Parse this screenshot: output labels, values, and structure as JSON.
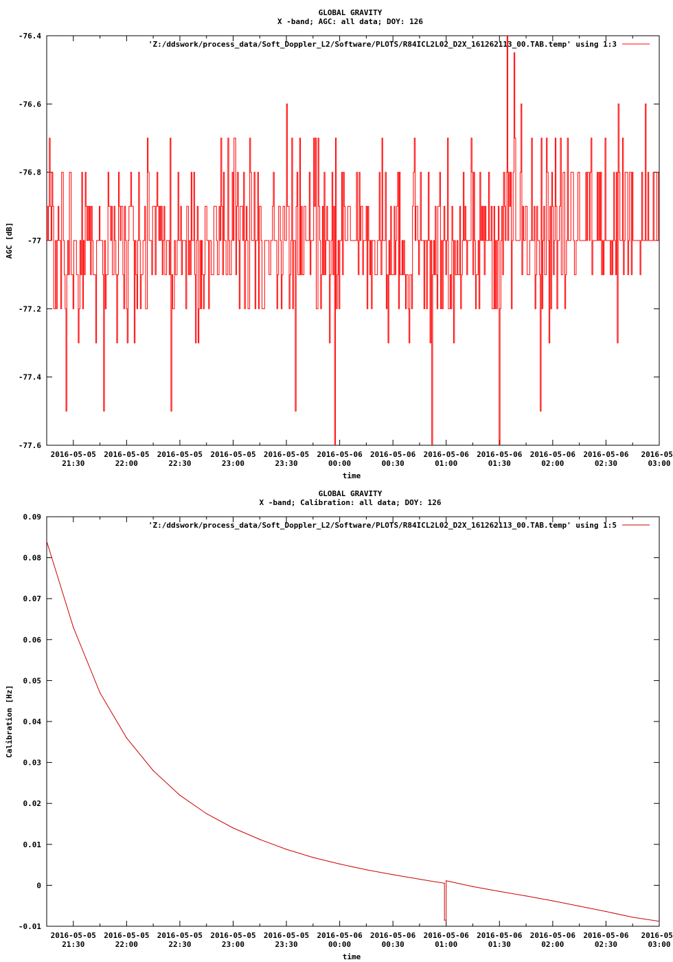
{
  "chart_data": [
    {
      "type": "line",
      "title": "GLOBAL GRAVITY",
      "subtitle": "X -band; AGC: all data; DOY: 126",
      "xlabel": "time",
      "ylabel": "AGC [dB]",
      "ylim": [
        -77.6,
        -76.4
      ],
      "xlim": [
        "2016-05-05 21:15",
        "2016-05-06 03:00"
      ],
      "yticks": [
        "-76.4",
        "-76.6",
        "-76.8",
        "-77",
        "-77.2",
        "-77.4",
        "-77.6"
      ],
      "ytick_values": [
        -76.4,
        -76.6,
        -76.8,
        -77.0,
        -77.2,
        -77.4,
        -77.6
      ],
      "xtick_dates": [
        "2016-05-05",
        "2016-05-05",
        "2016-05-05",
        "2016-05-05",
        "2016-05-05",
        "2016-05-06",
        "2016-05-06",
        "2016-05-06",
        "2016-05-06",
        "2016-05-06",
        "2016-05-06",
        "2016-05-"
      ],
      "xtick_times": [
        "21:30",
        "22:00",
        "22:30",
        "23:00",
        "23:30",
        "00:00",
        "00:30",
        "01:00",
        "01:30",
        "02:00",
        "02:30",
        "03:00"
      ],
      "grid": false,
      "legend_position": "top-right",
      "series": [
        {
          "name": "'Z:/ddswork/process_data/Soft_Doppler_L2/Software/PLOTS/R84ICL2L02_D2X_161262113_00.TAB.temp' using 1:3",
          "color": "#ff0000",
          "baseline": -77.0,
          "noise_range": [
            -77.3,
            -76.7
          ],
          "spikes": [
            {
              "x": "2016-05-05 21:26",
              "y": -77.5
            },
            {
              "x": "2016-05-05 21:47",
              "y": -77.5
            },
            {
              "x": "2016-05-05 22:25",
              "y": -77.5
            },
            {
              "x": "2016-05-05 23:30",
              "y": -76.6
            },
            {
              "x": "2016-05-05 23:35",
              "y": -77.5
            },
            {
              "x": "2016-05-05 23:57",
              "y": -77.6
            },
            {
              "x": "2016-05-06 00:52",
              "y": -77.6
            },
            {
              "x": "2016-05-06 01:30",
              "y": -77.6
            },
            {
              "x": "2016-05-06 01:34",
              "y": -76.4
            },
            {
              "x": "2016-05-06 01:38",
              "y": -76.45
            },
            {
              "x": "2016-05-06 01:42",
              "y": -76.6
            },
            {
              "x": "2016-05-06 01:53",
              "y": -77.5
            },
            {
              "x": "2016-05-06 02:37",
              "y": -76.6
            },
            {
              "x": "2016-05-06 02:52",
              "y": -76.6
            }
          ]
        }
      ]
    },
    {
      "type": "line",
      "title": "GLOBAL GRAVITY",
      "subtitle": "X -band; Calibration: all data; DOY: 126",
      "xlabel": "time",
      "ylabel": "Calibration [Hz]",
      "ylim": [
        -0.01,
        0.09
      ],
      "xlim": [
        "2016-05-05 21:15",
        "2016-05-06 03:00"
      ],
      "yticks": [
        "0.09",
        "0.08",
        "0.07",
        "0.06",
        "0.05",
        "0.04",
        "0.03",
        "0.02",
        "0.01",
        "0",
        "-0.01"
      ],
      "ytick_values": [
        0.09,
        0.08,
        0.07,
        0.06,
        0.05,
        0.04,
        0.03,
        0.02,
        0.01,
        0.0,
        -0.01
      ],
      "xtick_dates": [
        "2016-05-05",
        "2016-05-05",
        "2016-05-05",
        "2016-05-05",
        "2016-05-05",
        "2016-05-06",
        "2016-05-06",
        "2016-05-06",
        "2016-05-06",
        "2016-05-06",
        "2016-05-06",
        "2016-05-"
      ],
      "xtick_times": [
        "21:30",
        "22:00",
        "22:30",
        "23:00",
        "23:30",
        "00:00",
        "00:30",
        "01:00",
        "01:30",
        "02:00",
        "02:30",
        "03:00"
      ],
      "grid": false,
      "legend_position": "top-right",
      "series": [
        {
          "name": "'Z:/ddswork/process_data/Soft_Doppler_L2/Software/PLOTS/R84ICL2L02_D2X_161262113_00.TAB.temp' using 1:5",
          "color": "#cc0000",
          "x": [
            "2016-05-05 21:15",
            "2016-05-05 21:30",
            "2016-05-05 21:45",
            "2016-05-05 22:00",
            "2016-05-05 22:15",
            "2016-05-05 22:30",
            "2016-05-05 22:45",
            "2016-05-05 23:00",
            "2016-05-05 23:15",
            "2016-05-05 23:30",
            "2016-05-05 23:45",
            "2016-05-06 00:00",
            "2016-05-06 00:15",
            "2016-05-06 00:30",
            "2016-05-06 00:45",
            "2016-05-06 00:59",
            "2016-05-06 00:59",
            "2016-05-06 01:00",
            "2016-05-06 01:00",
            "2016-05-06 01:15",
            "2016-05-06 01:30",
            "2016-05-06 01:45",
            "2016-05-06 02:00",
            "2016-05-06 02:15",
            "2016-05-06 02:30",
            "2016-05-06 02:45",
            "2016-05-06 03:00"
          ],
          "values": [
            0.084,
            0.063,
            0.047,
            0.036,
            0.028,
            0.022,
            0.0175,
            0.014,
            0.0112,
            0.0088,
            0.0068,
            0.0052,
            0.0038,
            0.0026,
            0.0015,
            0.0005,
            -0.0085,
            -0.0085,
            0.0011,
            -0.0003,
            -0.0015,
            -0.0026,
            -0.0038,
            -0.0051,
            -0.0064,
            -0.0078,
            -0.0088
          ]
        }
      ]
    }
  ]
}
